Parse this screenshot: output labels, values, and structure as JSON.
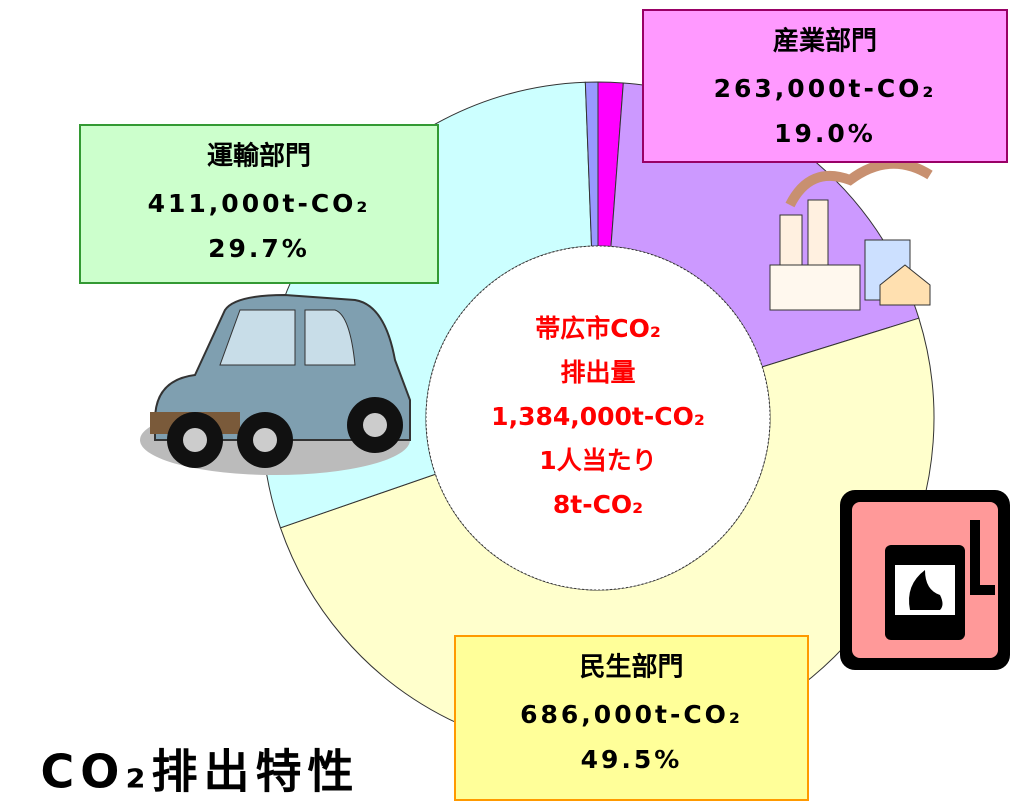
{
  "chart_data": {
    "type": "pie",
    "donut": true,
    "title": "CO₂排出特性",
    "categories": [
      null,
      "産業部門",
      "民生部門",
      "運輸部門",
      null
    ],
    "values": [
      1.2,
      19.0,
      49.5,
      29.7,
      0.6
    ],
    "value_labels": [
      null,
      "19.0%",
      "49.5%",
      "29.7%",
      null
    ],
    "amount_labels": [
      null,
      "263,000t-CO₂",
      "686,000t-CO₂",
      "411,000t-CO₂",
      null
    ],
    "colors": [
      "#ff00ff",
      "#cc99ff",
      "#ffffcc",
      "#ccffff",
      "#9999ff"
    ],
    "center_text": [
      "帯広市CO₂",
      "排出量",
      "1,384,000t-CO₂",
      "1人当たり",
      "8t-CO₂"
    ]
  }
}
